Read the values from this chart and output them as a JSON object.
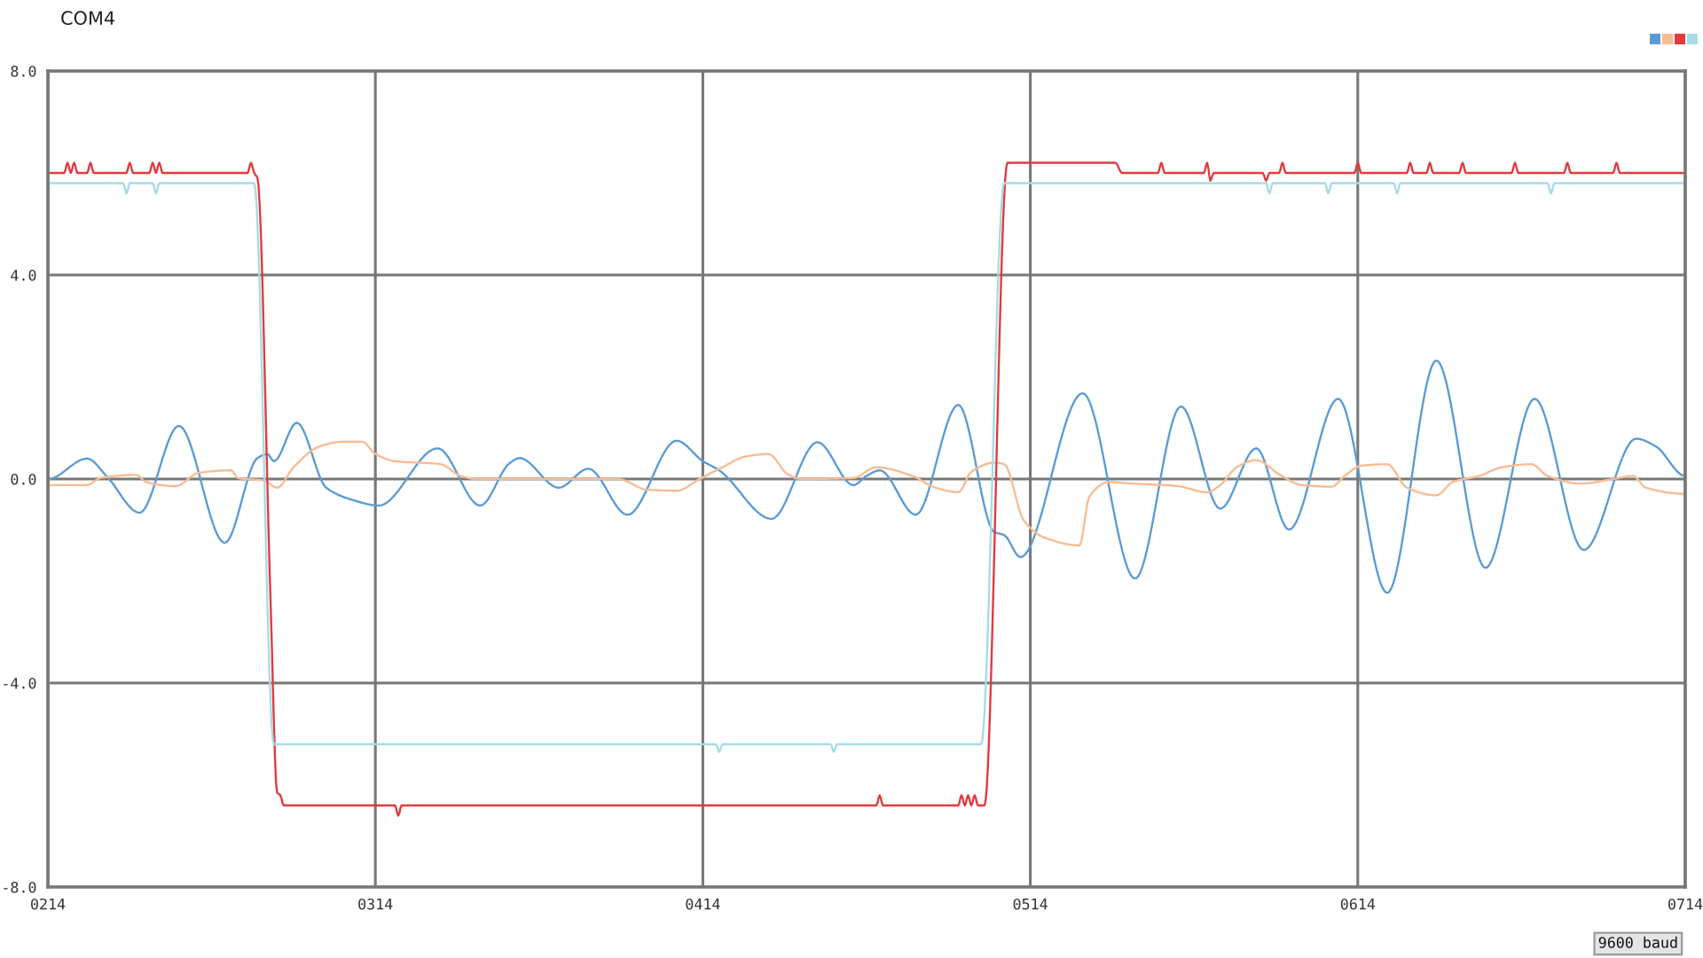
{
  "chart_data": {
    "type": "line",
    "title": "COM4",
    "xlim": [
      214,
      714
    ],
    "xticks": [
      {
        "value": 214,
        "label": "0214"
      },
      {
        "value": 314,
        "label": "0314"
      },
      {
        "value": 414,
        "label": "0414"
      },
      {
        "value": 514,
        "label": "0514"
      },
      {
        "value": 614,
        "label": "0614"
      },
      {
        "value": 714,
        "label": "0714"
      }
    ],
    "ylim": [
      -8,
      8
    ],
    "yticks": [
      {
        "value": -8,
        "label": "-8.0"
      },
      {
        "value": -4,
        "label": "-4.0"
      },
      {
        "value": 0,
        "label": "0.0"
      },
      {
        "value": 4,
        "label": "4.0"
      },
      {
        "value": 8,
        "label": "8.0"
      }
    ],
    "grid": true,
    "annotations": [
      "9600 baud"
    ],
    "series": [
      {
        "color": "#5b9bd5",
        "x": [
          214,
          226,
          232,
          242,
          254,
          268,
          278,
          281,
          283,
          290,
          299,
          307,
          315,
          333,
          346,
          355,
          358,
          370,
          379,
          391,
          406,
          414,
          419,
          435,
          449,
          460,
          464,
          468,
          479,
          492,
          503,
          506,
          511,
          530,
          546,
          560,
          572,
          583,
          593,
          608,
          623,
          638,
          653,
          668,
          683,
          699,
          705,
          714
        ],
        "values": [
          0.0,
          0.4,
          0.05,
          -0.66,
          1.04,
          -1.25,
          0.41,
          0.49,
          0.35,
          1.1,
          -0.17,
          -0.41,
          -0.52,
          0.6,
          -0.52,
          0.31,
          0.41,
          -0.17,
          0.2,
          -0.7,
          0.75,
          0.35,
          0.17,
          -0.78,
          0.72,
          -0.12,
          0.06,
          0.17,
          -0.7,
          1.45,
          -1.04,
          -1.1,
          -1.53,
          1.68,
          -1.95,
          1.42,
          -0.58,
          0.6,
          -0.99,
          1.57,
          -2.23,
          2.32,
          -1.74,
          1.57,
          -1.39,
          0.79,
          0.64,
          0.06
        ]
      },
      {
        "color": "#f7bc92",
        "x": [
          214,
          226,
          230,
          241,
          244,
          253,
          260,
          270,
          272,
          280,
          284,
          289,
          297,
          304,
          310,
          314,
          320,
          334,
          340,
          345,
          388,
          397,
          406,
          413,
          420,
          427,
          434,
          440,
          444,
          460,
          467,
          478,
          485,
          492,
          496,
          503,
          506,
          512,
          518,
          529,
          532,
          538,
          545,
          559,
          568,
          572,
          577,
          583,
          590,
          597,
          606,
          610,
          615,
          623,
          629,
          638,
          643,
          651,
          658,
          667,
          672,
          682,
          692,
          698,
          702,
          714
        ],
        "values": [
          -0.12,
          -0.12,
          0.02,
          0.08,
          -0.06,
          -0.14,
          0.12,
          0.17,
          0.02,
          -0.03,
          -0.17,
          0.23,
          0.64,
          0.73,
          0.73,
          0.49,
          0.35,
          0.29,
          0.06,
          0.0,
          0.0,
          -0.21,
          -0.23,
          0.0,
          0.23,
          0.44,
          0.49,
          0.09,
          0.0,
          0.02,
          0.23,
          0.06,
          -0.17,
          -0.26,
          0.14,
          0.32,
          0.29,
          -0.81,
          -1.14,
          -1.3,
          -0.35,
          -0.06,
          -0.09,
          -0.14,
          -0.26,
          -0.12,
          0.23,
          0.37,
          0.09,
          -0.12,
          -0.15,
          0.06,
          0.26,
          0.29,
          -0.17,
          -0.32,
          -0.06,
          0.06,
          0.23,
          0.29,
          0.06,
          -0.09,
          0.0,
          0.06,
          -0.17,
          -0.29
        ]
      },
      {
        "color": "#e23a3f",
        "x": [
          214,
          219,
          220,
          221,
          222,
          223,
          226,
          227,
          228,
          238,
          239,
          240,
          245,
          246,
          247,
          248,
          249,
          275,
          276,
          277,
          278,
          282,
          284,
          285,
          286,
          320,
          321,
          322,
          467,
          468,
          469,
          492,
          493,
          494,
          495,
          496,
          497,
          498,
          500,
          507,
          540,
          542,
          553,
          554,
          555,
          567,
          568,
          569,
          570,
          585,
          586,
          587,
          590,
          591,
          592,
          613,
          614,
          615,
          629,
          630,
          631,
          635,
          636,
          637,
          645,
          646,
          647,
          661,
          662,
          663,
          677,
          678,
          679,
          692,
          693,
          694,
          714
        ],
        "values": [
          6.0,
          6.0,
          6.2,
          6.0,
          6.2,
          6.0,
          6.0,
          6.2,
          6.0,
          6.0,
          6.2,
          6.0,
          6.0,
          6.2,
          6.0,
          6.2,
          6.0,
          6.0,
          6.2,
          6.0,
          5.9,
          -2.4,
          -6.15,
          -6.2,
          -6.4,
          -6.4,
          -6.6,
          -6.4,
          -6.4,
          -6.2,
          -6.4,
          -6.4,
          -6.2,
          -6.4,
          -6.2,
          -6.4,
          -6.2,
          -6.4,
          -6.4,
          6.2,
          6.2,
          6.0,
          6.0,
          6.2,
          6.0,
          6.0,
          6.2,
          5.85,
          6.0,
          6.0,
          5.85,
          6.0,
          6.0,
          6.2,
          6.0,
          6.0,
          6.2,
          6.0,
          6.0,
          6.2,
          6.0,
          6.0,
          6.2,
          6.0,
          6.0,
          6.2,
          6.0,
          6.0,
          6.2,
          6.0,
          6.0,
          6.2,
          6.0,
          6.0,
          6.2,
          6.0,
          6.0
        ]
      },
      {
        "color": "#a6dbe8",
        "x": [
          214,
          237,
          238,
          239,
          246,
          247,
          248,
          277,
          283,
          418,
          419,
          420,
          453,
          454,
          455,
          499,
          506,
          586,
          587,
          588,
          604,
          605,
          606,
          625,
          626,
          627,
          672,
          673,
          674,
          714
        ],
        "values": [
          5.8,
          5.8,
          5.6,
          5.8,
          5.8,
          5.6,
          5.8,
          5.8,
          -5.2,
          -5.2,
          -5.35,
          -5.2,
          -5.2,
          -5.35,
          -5.2,
          -5.2,
          5.8,
          5.8,
          5.6,
          5.8,
          5.8,
          5.6,
          5.8,
          5.8,
          5.6,
          5.8,
          5.8,
          5.6,
          5.8,
          5.8
        ]
      }
    ]
  }
}
